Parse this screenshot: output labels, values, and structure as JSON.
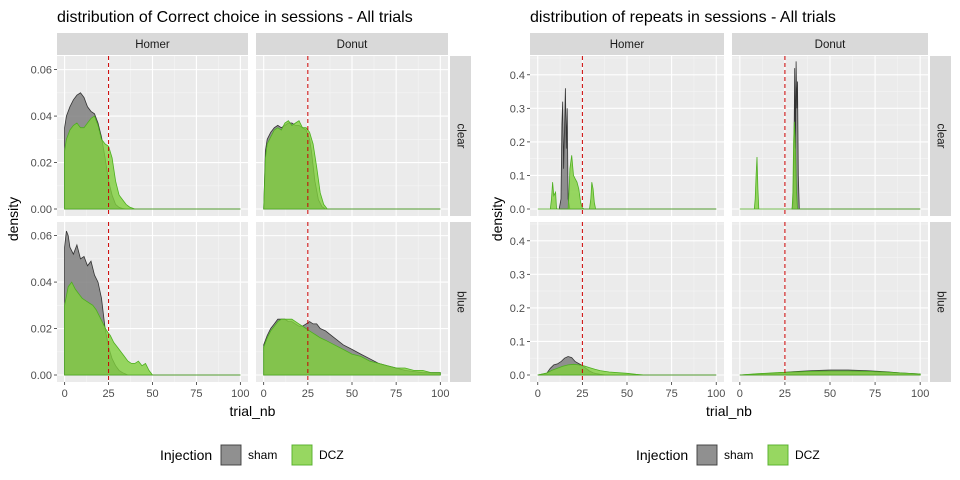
{
  "chart_data": [
    {
      "type": "area",
      "title": "distribution of Correct choice in sessions - All trials",
      "xlabel": "trial_nb",
      "ylabel": "density",
      "xlim": [
        0,
        100
      ],
      "ylim": [
        0,
        0.065
      ],
      "xticks": [
        "0",
        "25",
        "50",
        "75",
        "100"
      ],
      "yticks": [
        "0.00",
        "0.02",
        "0.04",
        "0.06"
      ],
      "col_facets": [
        "Homer",
        "Donut"
      ],
      "row_facets": [
        "clear",
        "blue"
      ],
      "vline_x": 25,
      "legend": {
        "title": "Injection",
        "entries": [
          "sham",
          "DCZ"
        ],
        "position": "bottom"
      },
      "panels": [
        {
          "col": "Homer",
          "row": "clear",
          "series": [
            {
              "name": "sham",
              "x": [
                0,
                1,
                3,
                5,
                7,
                9,
                11,
                13,
                15,
                17,
                19,
                21,
                23,
                25,
                27,
                29,
                31,
                33,
                35,
                40,
                100
              ],
              "y": [
                0.035,
                0.04,
                0.044,
                0.047,
                0.049,
                0.05,
                0.048,
                0.044,
                0.042,
                0.041,
                0.037,
                0.031,
                0.022,
                0.012,
                0.006,
                0.002,
                0.0007,
                0.0002,
                0.0,
                0.0,
                0.0
              ]
            },
            {
              "name": "DCZ",
              "x": [
                0,
                1,
                3,
                5,
                7,
                9,
                11,
                13,
                15,
                17,
                19,
                21,
                23,
                25,
                27,
                29,
                31,
                33,
                35,
                37,
                40,
                100
              ],
              "y": [
                0.025,
                0.03,
                0.034,
                0.036,
                0.037,
                0.035,
                0.035,
                0.037,
                0.039,
                0.04,
                0.036,
                0.03,
                0.028,
                0.027,
                0.022,
                0.012,
                0.006,
                0.004,
                0.002,
                0.0008,
                0.0,
                0.0
              ]
            }
          ]
        },
        {
          "col": "Donut",
          "row": "clear",
          "series": [
            {
              "name": "sham",
              "x": [
                0,
                1,
                2,
                4,
                6,
                8,
                10,
                12,
                14,
                16,
                18,
                20,
                22,
                24,
                26,
                27,
                29,
                31,
                33,
                35,
                100
              ],
              "y": [
                0.0,
                0.025,
                0.03,
                0.033,
                0.035,
                0.036,
                0.035,
                0.036,
                0.037,
                0.037,
                0.036,
                0.036,
                0.035,
                0.034,
                0.03,
                0.025,
                0.012,
                0.004,
                0.001,
                0.0,
                0.0
              ]
            },
            {
              "name": "DCZ",
              "x": [
                0,
                1,
                2,
                4,
                6,
                8,
                10,
                12,
                14,
                16,
                18,
                20,
                22,
                24,
                26,
                28,
                30,
                32,
                34,
                36,
                100
              ],
              "y": [
                0.0,
                0.022,
                0.028,
                0.031,
                0.034,
                0.035,
                0.034,
                0.037,
                0.038,
                0.036,
                0.037,
                0.038,
                0.035,
                0.035,
                0.033,
                0.028,
                0.018,
                0.007,
                0.002,
                0.0,
                0.0
              ]
            }
          ]
        },
        {
          "col": "Homer",
          "row": "blue",
          "series": [
            {
              "name": "sham",
              "x": [
                0,
                1,
                2,
                3,
                5,
                7,
                9,
                11,
                13,
                15,
                17,
                19,
                21,
                23,
                25,
                27,
                29,
                31,
                33,
                36,
                100
              ],
              "y": [
                0.055,
                0.062,
                0.06,
                0.055,
                0.052,
                0.056,
                0.05,
                0.051,
                0.047,
                0.049,
                0.043,
                0.04,
                0.033,
                0.02,
                0.012,
                0.007,
                0.004,
                0.002,
                0.001,
                0.0,
                0.0
              ]
            },
            {
              "name": "DCZ",
              "x": [
                0,
                2,
                4,
                6,
                8,
                10,
                12,
                14,
                16,
                18,
                20,
                22,
                24,
                26,
                28,
                30,
                32,
                34,
                36,
                38,
                40,
                42,
                44,
                46,
                48,
                50,
                100
              ],
              "y": [
                0.03,
                0.038,
                0.04,
                0.037,
                0.035,
                0.033,
                0.032,
                0.031,
                0.03,
                0.028,
                0.025,
                0.022,
                0.019,
                0.017,
                0.014,
                0.012,
                0.01,
                0.008,
                0.006,
                0.005,
                0.005,
                0.006,
                0.004,
                0.005,
                0.002,
                0.0,
                0.0
              ]
            }
          ]
        },
        {
          "col": "Donut",
          "row": "blue",
          "series": [
            {
              "name": "sham",
              "x": [
                0,
                2,
                4,
                6,
                8,
                10,
                12,
                14,
                16,
                18,
                20,
                22,
                24,
                26,
                28,
                30,
                32,
                35,
                40,
                45,
                50,
                55,
                60,
                65,
                70,
                75,
                80,
                85,
                90,
                95,
                100
              ],
              "y": [
                0.013,
                0.017,
                0.02,
                0.022,
                0.024,
                0.024,
                0.024,
                0.023,
                0.023,
                0.022,
                0.021,
                0.021,
                0.022,
                0.023,
                0.022,
                0.022,
                0.02,
                0.019,
                0.016,
                0.013,
                0.011,
                0.009,
                0.007,
                0.005,
                0.004,
                0.003,
                0.002,
                0.0015,
                0.001,
                0.001,
                0.001
              ]
            },
            {
              "name": "DCZ",
              "x": [
                0,
                2,
                4,
                6,
                8,
                10,
                12,
                14,
                16,
                18,
                20,
                22,
                24,
                26,
                28,
                30,
                32,
                35,
                40,
                45,
                50,
                55,
                60,
                65,
                70,
                75,
                80,
                85,
                90,
                95,
                100
              ],
              "y": [
                0.012,
                0.016,
                0.019,
                0.021,
                0.023,
                0.024,
                0.024,
                0.024,
                0.024,
                0.023,
                0.022,
                0.021,
                0.02,
                0.019,
                0.018,
                0.017,
                0.016,
                0.015,
                0.013,
                0.011,
                0.009,
                0.008,
                0.006,
                0.005,
                0.004,
                0.003,
                0.003,
                0.002,
                0.002,
                0.001,
                0.001
              ]
            }
          ]
        }
      ]
    },
    {
      "type": "area",
      "title": "distribution of repeats in sessions - All trials",
      "xlabel": "trial_nb",
      "ylabel": "density",
      "xlim": [
        0,
        100
      ],
      "ylim": [
        0,
        0.45
      ],
      "xticks": [
        "0",
        "25",
        "50",
        "75",
        "100"
      ],
      "yticks": [
        "0.0",
        "0.1",
        "0.2",
        "0.3",
        "0.4"
      ],
      "col_facets": [
        "Homer",
        "Donut"
      ],
      "row_facets": [
        "clear",
        "blue"
      ],
      "vline_x": 25,
      "legend": {
        "title": "Injection",
        "entries": [
          "sham",
          "DCZ"
        ],
        "position": "bottom"
      },
      "panels": [
        {
          "col": "Homer",
          "row": "clear",
          "series": [
            {
              "name": "sham",
              "x": [
                12,
                13,
                13.5,
                14,
                14.5,
                15,
                15.5,
                16,
                16.5,
                17,
                18,
                100
              ],
              "y": [
                0.0,
                0.03,
                0.25,
                0.32,
                0.12,
                0.24,
                0.36,
                0.18,
                0.3,
                0.03,
                0.0,
                0.0
              ]
            },
            {
              "name": "DCZ",
              "x": [
                0,
                7,
                7.7,
                8.3,
                9,
                10,
                10.5,
                11,
                17,
                17.5,
                18,
                19,
                20,
                21,
                22,
                23,
                24,
                25,
                26,
                29,
                29.7,
                30.3,
                31,
                31.7,
                32.4,
                100
              ],
              "y": [
                0.0,
                0.0,
                0.03,
                0.08,
                0.04,
                0.05,
                0.002,
                0.0,
                0.0,
                0.05,
                0.12,
                0.16,
                0.1,
                0.09,
                0.08,
                0.06,
                0.02,
                0.003,
                0.0,
                0.0,
                0.03,
                0.08,
                0.06,
                0.02,
                0.0,
                0.0
              ]
            }
          ]
        },
        {
          "col": "Donut",
          "row": "clear",
          "series": [
            {
              "name": "sham",
              "x": [
                29,
                29.5,
                30,
                30.4,
                30.8,
                31.2,
                31.6,
                32,
                32.4,
                33,
                100
              ],
              "y": [
                0.0,
                0.02,
                0.15,
                0.42,
                0.18,
                0.44,
                0.3,
                0.38,
                0.1,
                0.0,
                0.0
              ]
            },
            {
              "name": "DCZ",
              "x": [
                0,
                8,
                8.5,
                9,
                9.5,
                10,
                10.5,
                29,
                29.4,
                29.8,
                30.2,
                30.6,
                31,
                31.4,
                32,
                100
              ],
              "y": [
                0.0,
                0.0,
                0.03,
                0.1,
                0.155,
                0.06,
                0.0,
                0.0,
                0.05,
                0.2,
                0.26,
                0.22,
                0.15,
                0.05,
                0.0,
                0.0
              ]
            }
          ]
        },
        {
          "col": "Homer",
          "row": "blue",
          "series": [
            {
              "name": "sham",
              "x": [
                0,
                5,
                7,
                9,
                11,
                13,
                15,
                17,
                19,
                21,
                23,
                25,
                27,
                29,
                31,
                33,
                35,
                38,
                100
              ],
              "y": [
                0.0,
                0.005,
                0.02,
                0.03,
                0.033,
                0.04,
                0.05,
                0.055,
                0.052,
                0.04,
                0.034,
                0.028,
                0.02,
                0.012,
                0.007,
                0.004,
                0.002,
                0.0,
                0.0
              ]
            },
            {
              "name": "DCZ",
              "x": [
                0,
                5,
                8,
                11,
                14,
                17,
                20,
                23,
                26,
                29,
                32,
                35,
                40,
                45,
                50,
                55,
                60,
                100
              ],
              "y": [
                0.0,
                0.006,
                0.014,
                0.02,
                0.026,
                0.03,
                0.032,
                0.03,
                0.027,
                0.022,
                0.017,
                0.013,
                0.009,
                0.007,
                0.005,
                0.002,
                0.0,
                0.0
              ]
            }
          ]
        },
        {
          "col": "Donut",
          "row": "blue",
          "series": [
            {
              "name": "sham",
              "x": [
                0,
                10,
                20,
                30,
                40,
                50,
                60,
                70,
                80,
                90,
                100
              ],
              "y": [
                0.0,
                0.003,
                0.006,
                0.01,
                0.013,
                0.015,
                0.015,
                0.013,
                0.01,
                0.006,
                0.003
              ]
            },
            {
              "name": "DCZ",
              "x": [
                0,
                10,
                20,
                30,
                40,
                50,
                60,
                70,
                80,
                90,
                100
              ],
              "y": [
                0.0,
                0.004,
                0.007,
                0.009,
                0.011,
                0.012,
                0.012,
                0.011,
                0.009,
                0.006,
                0.003
              ]
            }
          ]
        }
      ]
    }
  ],
  "colors": {
    "sham_fill": "#7f7f7f",
    "sham_line": "#333333",
    "dcz_fill": "#7fcf3c",
    "dcz_line": "#4daf1f",
    "vline": "#cc0000",
    "panel_bg": "#ebebeb",
    "strip_bg": "#d9d9d9"
  }
}
